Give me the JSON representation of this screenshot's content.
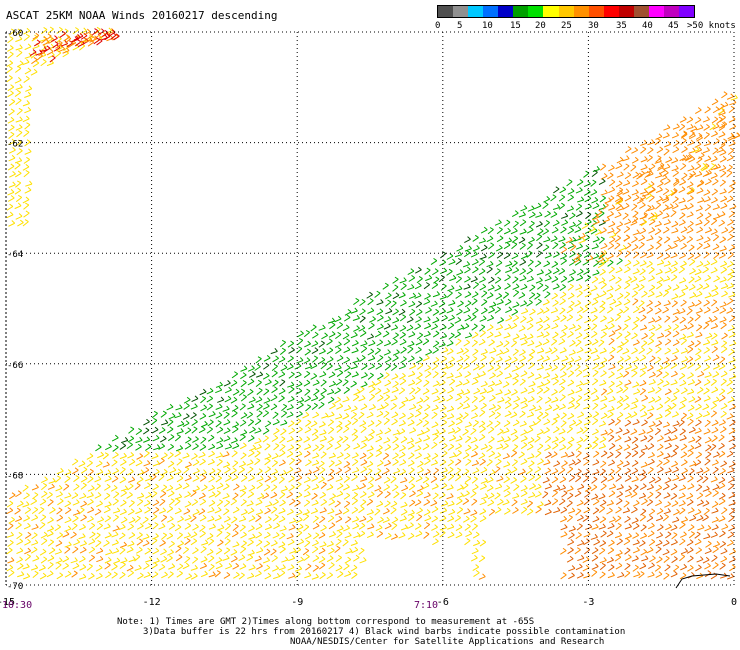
{
  "header": {
    "title": "ASCAT 25KM NOAA Winds 20160217 descending"
  },
  "legend": {
    "colors": [
      "#505050",
      "#909090",
      "#00c8ff",
      "#0070ff",
      "#0000c8",
      "#00a000",
      "#00e000",
      "#ffff00",
      "#ffc800",
      "#ff9000",
      "#ff5000",
      "#ff0000",
      "#c00000",
      "#a05030",
      "#ff00ff",
      "#c000c0",
      "#8000ff"
    ],
    "labels": [
      "0",
      "5",
      "10",
      "15",
      "20",
      "25",
      "30",
      "35",
      "40",
      "45",
      ">50 knots"
    ]
  },
  "map": {
    "lat_labels": [
      "-60",
      "-62",
      "-64",
      "-66",
      "-68",
      "-70"
    ],
    "lon_labels": [
      "-15",
      "-12",
      "-9",
      "-6",
      "-3",
      "0"
    ],
    "lon_range": [
      -15,
      0
    ],
    "lat_range": [
      -60,
      -70
    ],
    "gridlines": true,
    "wind_colors": {
      "blue": "#0000e0",
      "cyan": "#00b0ff",
      "green": "#00a800",
      "dark_green": "#005000",
      "yellow": "#ffe000",
      "light_yellow": "#f8f050",
      "orange": "#ff8c00",
      "dark_orange": "#e06000",
      "red": "#e00000",
      "black": "#000000"
    }
  },
  "time_labels": {
    "left": "10:30",
    "middle": "7:10"
  },
  "notes": {
    "line1": "Note: 1) Times are GMT 2)Times along bottom correspond to measurement at -65S",
    "line2": "3)Data buffer is 22 hrs from 20160217 4) Black wind barbs indicate possible contamination",
    "line3": "NOAA/NESDIS/Center for Satellite Applications and Research"
  }
}
